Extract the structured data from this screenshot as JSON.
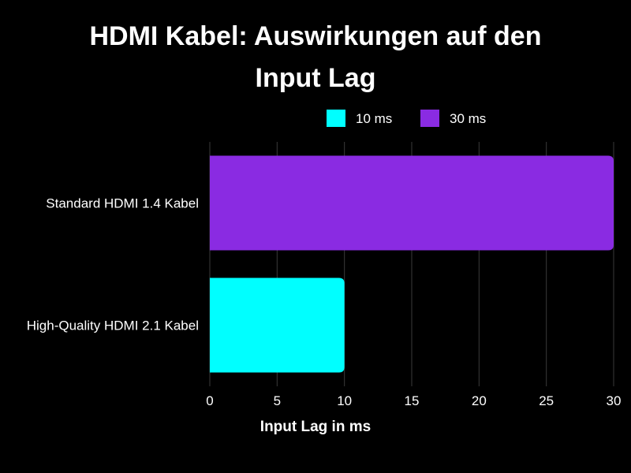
{
  "chart_data": {
    "type": "bar",
    "orientation": "horizontal",
    "title_lines": [
      "HDMI Kabel: Auswirkungen auf den",
      "Input Lag"
    ],
    "xlabel": "Input Lag in ms",
    "ylabel": "",
    "xlim": [
      0,
      30
    ],
    "ticks": [
      0,
      5,
      10,
      15,
      20,
      25,
      30
    ],
    "tick_labels": [
      "0",
      "5",
      "10",
      "15",
      "20",
      "25",
      "30"
    ],
    "grid": true,
    "legend_position": "top",
    "categories": [
      "Standard HDMI 1.4 Kabel",
      "High-Quality HDMI 2.1 Kabel"
    ],
    "values": [
      30,
      10
    ],
    "bar_colors": [
      "#8a2be2",
      "#00ffff"
    ],
    "legend": [
      {
        "label": "10 ms",
        "color": "#00ffff"
      },
      {
        "label": "30 ms",
        "color": "#8a2be2"
      }
    ]
  }
}
